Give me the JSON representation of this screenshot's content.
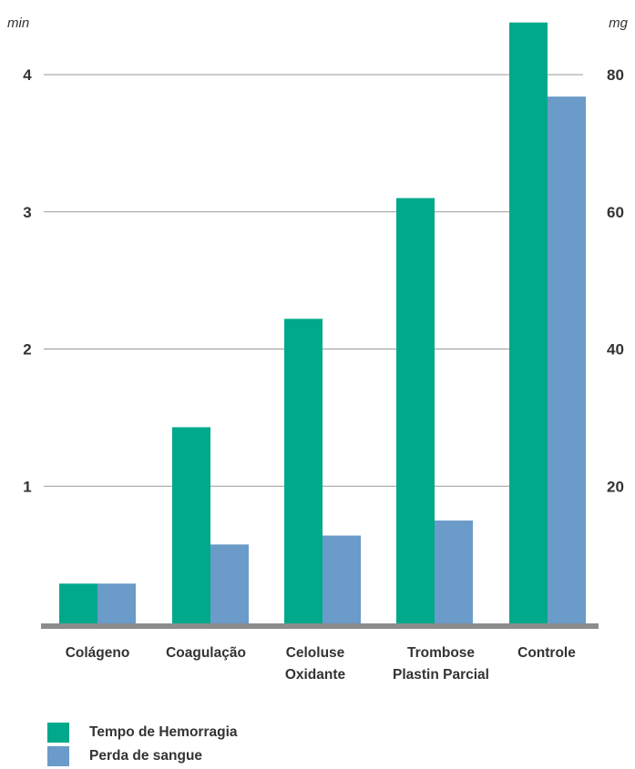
{
  "chart_data": {
    "type": "bar",
    "categories": [
      "Colágeno",
      "Coagulação",
      "Celoluse\nOxidante",
      "Trombose\nPlastin Parcial",
      "Controle"
    ],
    "left_axis": {
      "unit": "min",
      "ticks": [
        "1",
        "2",
        "3",
        "4"
      ],
      "ylim": [
        0,
        4.0
      ]
    },
    "right_axis": {
      "unit": "mg",
      "ticks": [
        "20",
        "40",
        "60",
        "80"
      ],
      "ylim": [
        0,
        80
      ]
    },
    "series": [
      {
        "name": "Tempo de Hemorragia",
        "axis": "left",
        "color": "#00a98c",
        "values": [
          0.29,
          1.43,
          2.22,
          3.1,
          4.38
        ]
      },
      {
        "name": "Perda de sangue",
        "axis": "right",
        "color": "#6a9bc9",
        "values": [
          5.8,
          11.5,
          12.8,
          15.0,
          76.8
        ]
      }
    ],
    "grid": true,
    "legend_position": "bottom-left"
  }
}
